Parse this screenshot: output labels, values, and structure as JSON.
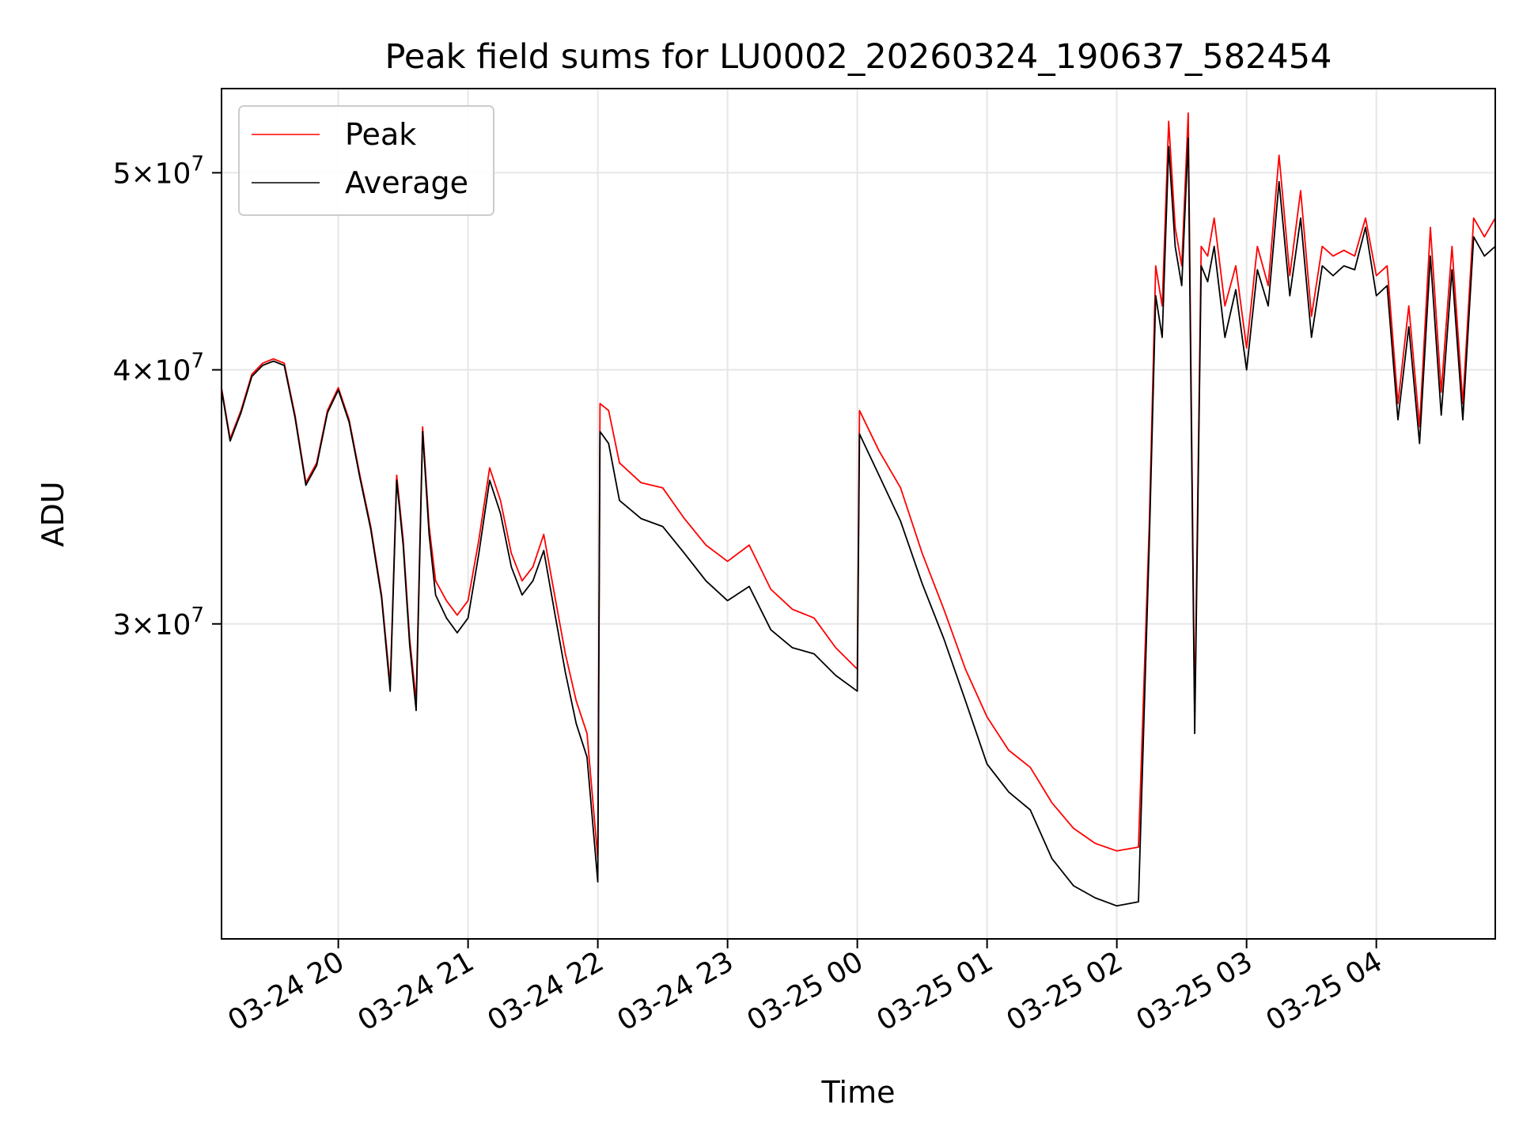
{
  "chart_data": {
    "type": "line",
    "title": "Peak field sums for LU0002_20260324_190637_582454",
    "xlabel": "Time",
    "ylabel": "ADU",
    "y_scale": "log",
    "xlim": [
      "2026-03-24 19:06",
      "2026-03-25 04:55"
    ],
    "ylim": [
      21000000,
      55000000
    ],
    "grid": true,
    "legend_position": "upper-left",
    "x_tick_labels": [
      "03-24 20",
      "03-24 21",
      "03-24 22",
      "03-24 23",
      "03-25 00",
      "03-25 01",
      "03-25 02",
      "03-25 03",
      "03-25 04"
    ],
    "x_ticks": [
      "2026-03-24 20:00",
      "2026-03-24 21:00",
      "2026-03-24 22:00",
      "2026-03-24 23:00",
      "2026-03-25 00:00",
      "2026-03-25 01:00",
      "2026-03-25 02:00",
      "2026-03-25 03:00",
      "2026-03-25 04:00"
    ],
    "y_ticks": [
      {
        "value": 30000000,
        "mantissa": "3",
        "exponent": "7"
      },
      {
        "value": 40000000,
        "mantissa": "4",
        "exponent": "7"
      },
      {
        "value": 50000000,
        "mantissa": "5",
        "exponent": "7"
      }
    ],
    "series": [
      {
        "name": "Peak",
        "color": "#ff0000",
        "x": [
          "2026-03-24 19:06",
          "2026-03-24 19:10",
          "2026-03-24 19:15",
          "2026-03-24 19:20",
          "2026-03-24 19:25",
          "2026-03-24 19:30",
          "2026-03-24 19:35",
          "2026-03-24 19:40",
          "2026-03-24 19:45",
          "2026-03-24 19:50",
          "2026-03-24 19:55",
          "2026-03-24 20:00",
          "2026-03-24 20:05",
          "2026-03-24 20:10",
          "2026-03-24 20:15",
          "2026-03-24 20:20",
          "2026-03-24 20:24",
          "2026-03-24 20:27",
          "2026-03-24 20:30",
          "2026-03-24 20:33",
          "2026-03-24 20:36",
          "2026-03-24 20:39",
          "2026-03-24 20:42",
          "2026-03-24 20:45",
          "2026-03-24 20:50",
          "2026-03-24 20:55",
          "2026-03-24 21:00",
          "2026-03-24 21:05",
          "2026-03-24 21:10",
          "2026-03-24 21:15",
          "2026-03-24 21:20",
          "2026-03-24 21:25",
          "2026-03-24 21:30",
          "2026-03-24 21:35",
          "2026-03-24 21:40",
          "2026-03-24 21:45",
          "2026-03-24 21:50",
          "2026-03-24 21:55",
          "2026-03-24 22:00",
          "2026-03-24 22:01",
          "2026-03-24 22:05",
          "2026-03-24 22:10",
          "2026-03-24 22:20",
          "2026-03-24 22:30",
          "2026-03-24 22:40",
          "2026-03-24 22:50",
          "2026-03-24 23:00",
          "2026-03-24 23:10",
          "2026-03-24 23:20",
          "2026-03-24 23:30",
          "2026-03-24 23:40",
          "2026-03-24 23:50",
          "2026-03-25 00:00",
          "2026-03-25 00:01",
          "2026-03-25 00:10",
          "2026-03-25 00:20",
          "2026-03-25 00:30",
          "2026-03-25 00:40",
          "2026-03-25 00:50",
          "2026-03-25 01:00",
          "2026-03-25 01:10",
          "2026-03-25 01:20",
          "2026-03-25 01:30",
          "2026-03-25 01:40",
          "2026-03-25 01:50",
          "2026-03-25 02:00",
          "2026-03-25 02:10",
          "2026-03-25 02:15",
          "2026-03-25 02:18",
          "2026-03-25 02:21",
          "2026-03-25 02:24",
          "2026-03-25 02:27",
          "2026-03-25 02:30",
          "2026-03-25 02:33",
          "2026-03-25 02:36",
          "2026-03-25 02:39",
          "2026-03-25 02:42",
          "2026-03-25 02:45",
          "2026-03-25 02:50",
          "2026-03-25 02:55",
          "2026-03-25 03:00",
          "2026-03-25 03:05",
          "2026-03-25 03:10",
          "2026-03-25 03:15",
          "2026-03-25 03:20",
          "2026-03-25 03:25",
          "2026-03-25 03:30",
          "2026-03-25 03:35",
          "2026-03-25 03:40",
          "2026-03-25 03:45",
          "2026-03-25 03:50",
          "2026-03-25 03:55",
          "2026-03-25 04:00",
          "2026-03-25 04:05",
          "2026-03-25 04:10",
          "2026-03-25 04:15",
          "2026-03-25 04:20",
          "2026-03-25 04:25",
          "2026-03-25 04:30",
          "2026-03-25 04:35",
          "2026-03-25 04:40",
          "2026-03-25 04:45",
          "2026-03-25 04:50",
          "2026-03-25 04:55"
        ],
        "y": [
          39200000,
          37000000,
          38200000,
          39800000,
          40300000,
          40500000,
          40300000,
          38000000,
          35200000,
          36000000,
          38200000,
          39200000,
          37800000,
          35500000,
          33500000,
          31000000,
          28000000,
          35500000,
          33000000,
          29500000,
          27500000,
          37500000,
          33500000,
          31500000,
          30800000,
          30300000,
          30800000,
          33000000,
          35800000,
          34500000,
          32500000,
          31500000,
          32000000,
          33200000,
          31000000,
          29000000,
          27500000,
          26500000,
          23000000,
          38500000,
          38200000,
          36000000,
          35200000,
          35000000,
          33800000,
          32800000,
          32200000,
          32800000,
          31200000,
          30500000,
          30200000,
          29200000,
          28500000,
          38200000,
          36500000,
          35000000,
          32500000,
          30500000,
          28500000,
          27000000,
          26000000,
          25500000,
          24500000,
          23800000,
          23400000,
          23200000,
          23300000,
          33500000,
          45000000,
          43000000,
          53000000,
          47000000,
          45000000,
          53500000,
          27000000,
          46000000,
          45500000,
          47500000,
          43000000,
          45000000,
          41000000,
          46000000,
          44000000,
          51000000,
          44500000,
          49000000,
          42500000,
          46000000,
          45500000,
          45800000,
          45500000,
          47500000,
          44500000,
          45000000,
          38500000,
          43000000,
          37500000,
          47000000,
          39000000,
          46000000,
          38500000,
          47500000,
          46500000,
          47500000
        ]
      },
      {
        "name": "Average",
        "color": "#000000",
        "x": [
          "2026-03-24 19:06",
          "2026-03-24 19:10",
          "2026-03-24 19:15",
          "2026-03-24 19:20",
          "2026-03-24 19:25",
          "2026-03-24 19:30",
          "2026-03-24 19:35",
          "2026-03-24 19:40",
          "2026-03-24 19:45",
          "2026-03-24 19:50",
          "2026-03-24 19:55",
          "2026-03-24 20:00",
          "2026-03-24 20:05",
          "2026-03-24 20:10",
          "2026-03-24 20:15",
          "2026-03-24 20:20",
          "2026-03-24 20:24",
          "2026-03-24 20:27",
          "2026-03-24 20:30",
          "2026-03-24 20:33",
          "2026-03-24 20:36",
          "2026-03-24 20:39",
          "2026-03-24 20:42",
          "2026-03-24 20:45",
          "2026-03-24 20:50",
          "2026-03-24 20:55",
          "2026-03-24 21:00",
          "2026-03-24 21:05",
          "2026-03-24 21:10",
          "2026-03-24 21:15",
          "2026-03-24 21:20",
          "2026-03-24 21:25",
          "2026-03-24 21:30",
          "2026-03-24 21:35",
          "2026-03-24 21:40",
          "2026-03-24 21:45",
          "2026-03-24 21:50",
          "2026-03-24 21:55",
          "2026-03-24 22:00",
          "2026-03-24 22:01",
          "2026-03-24 22:05",
          "2026-03-24 22:10",
          "2026-03-24 22:20",
          "2026-03-24 22:30",
          "2026-03-24 22:40",
          "2026-03-24 22:50",
          "2026-03-24 23:00",
          "2026-03-24 23:10",
          "2026-03-24 23:20",
          "2026-03-24 23:30",
          "2026-03-24 23:40",
          "2026-03-24 23:50",
          "2026-03-25 00:00",
          "2026-03-25 00:01",
          "2026-03-25 00:10",
          "2026-03-25 00:20",
          "2026-03-25 00:30",
          "2026-03-25 00:40",
          "2026-03-25 00:50",
          "2026-03-25 01:00",
          "2026-03-25 01:10",
          "2026-03-25 01:20",
          "2026-03-25 01:30",
          "2026-03-25 01:40",
          "2026-03-25 01:50",
          "2026-03-25 02:00",
          "2026-03-25 02:10",
          "2026-03-25 02:15",
          "2026-03-25 02:18",
          "2026-03-25 02:21",
          "2026-03-25 02:24",
          "2026-03-25 02:27",
          "2026-03-25 02:30",
          "2026-03-25 02:33",
          "2026-03-25 02:36",
          "2026-03-25 02:39",
          "2026-03-25 02:42",
          "2026-03-25 02:45",
          "2026-03-25 02:50",
          "2026-03-25 02:55",
          "2026-03-25 03:00",
          "2026-03-25 03:05",
          "2026-03-25 03:10",
          "2026-03-25 03:15",
          "2026-03-25 03:20",
          "2026-03-25 03:25",
          "2026-03-25 03:30",
          "2026-03-25 03:35",
          "2026-03-25 03:40",
          "2026-03-25 03:45",
          "2026-03-25 03:50",
          "2026-03-25 03:55",
          "2026-03-25 04:00",
          "2026-03-25 04:05",
          "2026-03-25 04:10",
          "2026-03-25 04:15",
          "2026-03-25 04:20",
          "2026-03-25 04:25",
          "2026-03-25 04:30",
          "2026-03-25 04:35",
          "2026-03-25 04:40",
          "2026-03-25 04:45",
          "2026-03-25 04:50",
          "2026-03-25 04:55"
        ],
        "y": [
          39100000,
          36900000,
          38100000,
          39700000,
          40200000,
          40400000,
          40200000,
          37900000,
          35100000,
          35900000,
          38100000,
          39100000,
          37700000,
          35400000,
          33400000,
          30900000,
          27800000,
          35300000,
          32800000,
          29300000,
          27200000,
          37300000,
          33200000,
          31000000,
          30200000,
          29700000,
          30200000,
          32500000,
          35300000,
          34000000,
          32000000,
          31000000,
          31500000,
          32600000,
          30400000,
          28400000,
          26800000,
          25800000,
          22400000,
          37300000,
          36800000,
          34500000,
          33800000,
          33500000,
          32500000,
          31500000,
          30800000,
          31300000,
          29800000,
          29200000,
          29000000,
          28300000,
          27800000,
          37200000,
          35500000,
          33700000,
          31400000,
          29500000,
          27500000,
          25600000,
          24800000,
          24300000,
          23000000,
          22300000,
          22000000,
          21800000,
          21900000,
          32800000,
          43500000,
          41500000,
          51500000,
          46000000,
          44000000,
          52000000,
          26500000,
          45000000,
          44200000,
          46000000,
          41500000,
          43800000,
          40000000,
          44800000,
          43000000,
          49500000,
          43500000,
          47500000,
          41500000,
          45000000,
          44500000,
          45000000,
          44800000,
          47000000,
          43500000,
          44000000,
          37800000,
          42000000,
          36800000,
          45500000,
          38000000,
          44800000,
          37800000,
          46500000,
          45500000,
          46000000
        ]
      }
    ]
  }
}
